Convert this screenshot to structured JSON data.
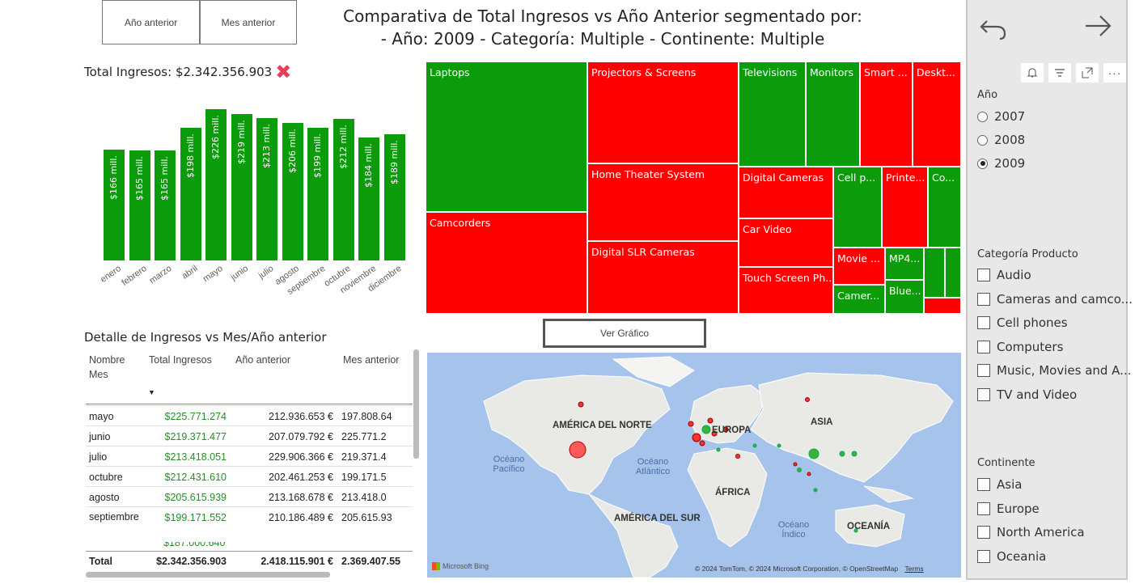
{
  "header": {
    "btn_prev_year": "Año anterior",
    "btn_prev_month": "Mes anterior",
    "title_line1": "Comparativa de Total Ingresos vs Año Anterior segmentado por:",
    "title_line2": "- Año: 2009 - Categoría: Multiple - Continente: Multiple"
  },
  "kpi": {
    "label": "Total Ingresos: $2.342.356.903"
  },
  "chart_data": {
    "type": "bar",
    "categories": [
      "enero",
      "febrero",
      "marzo",
      "abril",
      "mayo",
      "junio",
      "julio",
      "agosto",
      "septiembre",
      "octubre",
      "noviembre",
      "diciembre"
    ],
    "values": [
      166,
      165,
      165,
      198,
      226,
      219,
      213,
      206,
      199,
      212,
      184,
      189
    ],
    "data_labels": [
      "$166 mill.",
      "$165 mill.",
      "$165 mill.",
      "$198 mill.",
      "$226 mill.",
      "$219 mill.",
      "$213 mill.",
      "$206 mill.",
      "$199 mill.",
      "$212 mill.",
      "$184 mill.",
      "$189 mill."
    ],
    "bar_color": "#0b9b0b"
  },
  "treemap": {
    "green": "#0b9b0b",
    "red": "#ff0000",
    "labels": {
      "laptops": "Laptops",
      "camcorders": "Camcorders",
      "projectors": "Projectors & Screens",
      "home_theater": "Home Theater System",
      "slr": "Digital SLR Cameras",
      "televisions": "Televisions",
      "monitors": "Monitors",
      "smart": "Smart ...",
      "desktops": "Deskt...",
      "digital_cameras": "Digital Cameras",
      "car_video": "Car Video",
      "touch_screen": "Touch Screen Ph...",
      "cell": "Cell p...",
      "printers": "Printe...",
      "co": "Co...",
      "movie": "Movie ...",
      "mp4": "MP4...",
      "camera_acc": "Camer...",
      "blue": "Blue..."
    }
  },
  "view_button": "Ver Gráfico",
  "table": {
    "title": "Detalle de Ingresos vs Mes/Año anterior",
    "headers": [
      "Nombre Mes",
      "Total Ingresos",
      "Año anterior",
      "Mes anterior"
    ],
    "rows": [
      [
        "mayo",
        "$225.771.274",
        "212.936.653 €",
        "197.808.64"
      ],
      [
        "junio",
        "$219.371.477",
        "207.079.792 €",
        "225.771.2"
      ],
      [
        "julio",
        "$213.418.051",
        "229.906.366 €",
        "219.371.4"
      ],
      [
        "octubre",
        "$212.431.610",
        "202.461.253 €",
        "199.171.5"
      ],
      [
        "agosto",
        "$205.615.939",
        "213.168.678 €",
        "213.418.0"
      ],
      [
        "septiembre",
        "$199.171.552",
        "210.186.489 €",
        "205.615.93"
      ]
    ],
    "total": [
      "Total",
      "$2.342.356.903",
      "2.418.115.901 €",
      "2.369.407.55"
    ]
  },
  "map": {
    "labels": [
      "AMÉRICA DEL NORTE",
      "EUROPA",
      "ASIA",
      "ÁFRICA",
      "AMÉRICA DEL SUR",
      "OCEANÍA"
    ],
    "oceans": [
      "Océano Pacífico",
      "Océano Atlántico",
      "Océano Índico"
    ],
    "attribution": "© 2024 TomTom, © 2024 Microsoft Corporation, © OpenStreetMap",
    "terms": "Terms",
    "bing": "Microsoft Bing"
  },
  "pane": {
    "year_title": "Año",
    "years": [
      "2007",
      "2008",
      "2009"
    ],
    "selected_year": "2009",
    "category_title": "Categoría Producto",
    "categories": [
      "Audio",
      "Cameras and camco...",
      "Cell phones",
      "Computers",
      "Music, Movies and A...",
      "TV and Video"
    ],
    "continent_title": "Continente",
    "continents": [
      "Asia",
      "Europe",
      "North America",
      "Oceania"
    ]
  }
}
